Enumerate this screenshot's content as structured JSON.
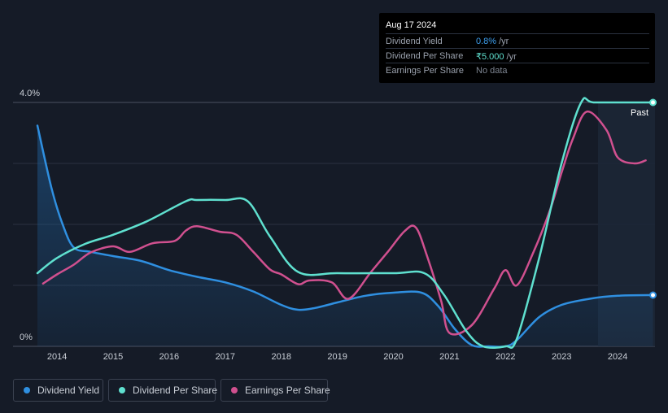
{
  "tooltip": {
    "date": "Aug 17 2024",
    "rows": [
      {
        "label": "Dividend Yield",
        "value": "0.8%",
        "unit": "/yr",
        "color": "#3ea0f0"
      },
      {
        "label": "Dividend Per Share",
        "value": "₹5.000",
        "unit": "/yr",
        "color": "#5fe0cf"
      },
      {
        "label": "Earnings Per Share",
        "value": "No data",
        "unit": "",
        "color": "#7d8490"
      }
    ]
  },
  "past_label": "Past",
  "legend": [
    {
      "label": "Dividend Yield",
      "color": "#2f8fe0"
    },
    {
      "label": "Dividend Per Share",
      "color": "#5fe0cf"
    },
    {
      "label": "Earnings Per Share",
      "color": "#d0508f"
    }
  ],
  "chart_data": {
    "type": "line",
    "x_ticks": [
      "2014",
      "2015",
      "2016",
      "2017",
      "2018",
      "2019",
      "2020",
      "2021",
      "2022",
      "2023",
      "2024"
    ],
    "y_tick_labels": [
      "4.0%",
      "0%"
    ],
    "ylim": [
      0,
      4.0
    ],
    "xlim": [
      2013.35,
      2024.63
    ],
    "grid": true,
    "legend_position": "bottom-left",
    "forecast_shade_from": 2023.65,
    "series": [
      {
        "name": "Dividend Yield",
        "color": "#2f8fe0",
        "fill": true,
        "axis": "percent",
        "x": [
          2013.65,
          2013.9,
          2014.1,
          2014.3,
          2014.6,
          2015.0,
          2015.5,
          2016.0,
          2016.5,
          2017.0,
          2017.5,
          2018.0,
          2018.3,
          2018.6,
          2019.0,
          2019.5,
          2020.0,
          2020.5,
          2020.8,
          2021.1,
          2021.4,
          2021.7,
          2022.0,
          2022.2,
          2022.6,
          2023.0,
          2023.5,
          2024.0,
          2024.63
        ],
        "y": [
          3.62,
          2.6,
          2.0,
          1.62,
          1.55,
          1.48,
          1.4,
          1.25,
          1.14,
          1.05,
          0.9,
          0.68,
          0.6,
          0.63,
          0.72,
          0.83,
          0.88,
          0.88,
          0.66,
          0.28,
          0.02,
          0.0,
          0.0,
          0.1,
          0.48,
          0.68,
          0.78,
          0.83,
          0.84
        ]
      },
      {
        "name": "Dividend Per Share",
        "color": "#5fe0cf",
        "fill": false,
        "axis": "dps",
        "x": [
          2013.65,
          2014.0,
          2014.5,
          2015.0,
          2015.6,
          2016.3,
          2016.5,
          2017.0,
          2017.4,
          2017.8,
          2018.3,
          2019.0,
          2020.0,
          2020.55,
          2020.9,
          2021.3,
          2021.6,
          2022.0,
          2022.2,
          2022.6,
          2023.0,
          2023.35,
          2023.6,
          2024.63
        ],
        "y": [
          1.2,
          1.45,
          1.68,
          1.83,
          2.05,
          2.38,
          2.4,
          2.4,
          2.38,
          1.8,
          1.22,
          1.2,
          1.2,
          1.2,
          0.85,
          0.25,
          0.0,
          0.0,
          0.12,
          1.45,
          3.0,
          4.0,
          4.0,
          4.0
        ]
      },
      {
        "name": "Earnings Per Share",
        "color": "#d0508f",
        "fill": false,
        "axis": "eps",
        "x": [
          2013.75,
          2014.0,
          2014.3,
          2014.6,
          2015.0,
          2015.3,
          2015.7,
          2016.1,
          2016.3,
          2016.5,
          2016.9,
          2017.2,
          2017.5,
          2017.8,
          2018.0,
          2018.3,
          2018.5,
          2018.9,
          2019.2,
          2019.6,
          2019.9,
          2020.2,
          2020.4,
          2020.6,
          2020.85,
          2021.0,
          2021.4,
          2021.8,
          2022.0,
          2022.2,
          2022.5,
          2022.8,
          2023.0,
          2023.2,
          2023.45,
          2023.8,
          2024.0,
          2024.3,
          2024.5
        ],
        "y": [
          1.03,
          1.18,
          1.34,
          1.54,
          1.64,
          1.55,
          1.69,
          1.73,
          1.9,
          1.97,
          1.88,
          1.83,
          1.55,
          1.26,
          1.18,
          1.02,
          1.08,
          1.05,
          0.78,
          1.22,
          1.55,
          1.89,
          1.95,
          1.48,
          0.75,
          0.22,
          0.35,
          0.95,
          1.25,
          1.0,
          1.55,
          2.25,
          2.85,
          3.4,
          3.85,
          3.55,
          3.1,
          3.0,
          3.05
        ]
      }
    ],
    "end_markers": [
      {
        "series": "Dividend Yield",
        "x": 2024.63,
        "y": 0.84
      },
      {
        "series": "Dividend Per Share",
        "x": 2024.63,
        "y": 4.0
      }
    ]
  }
}
